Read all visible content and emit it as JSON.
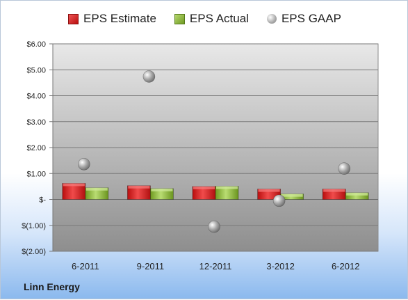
{
  "company": "Linn Energy",
  "chart_data": {
    "type": "bar",
    "categories": [
      "6-2011",
      "9-2011",
      "12-2011",
      "3-2012",
      "6-2012"
    ],
    "series": [
      {
        "name": "EPS Estimate",
        "kind": "bar",
        "color": "#d42020",
        "values": [
          0.62,
          0.53,
          0.5,
          0.4,
          0.4
        ]
      },
      {
        "name": "EPS Actual",
        "kind": "bar",
        "color": "#8cb43a",
        "values": [
          0.45,
          0.42,
          0.51,
          0.21,
          0.26
        ]
      },
      {
        "name": "EPS GAAP",
        "kind": "scatter",
        "color": "#a0a0a0",
        "values": [
          1.36,
          4.74,
          -1.05,
          -0.05,
          1.19
        ]
      }
    ],
    "yticks": [
      "$6.00",
      "$5.00",
      "$4.00",
      "$3.00",
      "$2.00",
      "$1.00",
      "$-",
      "$(1.00)",
      "$(2.00)"
    ],
    "ylim": [
      -2,
      6
    ],
    "grid": true,
    "legend": "top"
  }
}
